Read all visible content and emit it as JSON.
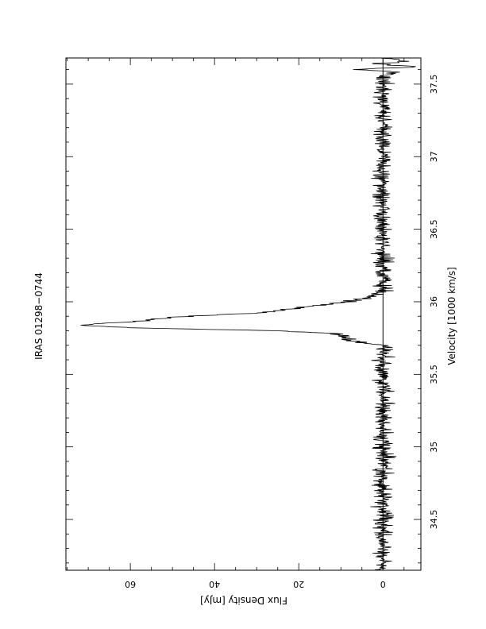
{
  "chart_data": {
    "type": "line",
    "title": "IRAS 01298−0744",
    "xlabel": "Velocity [1000 km/s]",
    "ylabel": "Flux Density [mJy]",
    "xlim": [
      34.15,
      37.68
    ],
    "ylim": [
      -9.0,
      75.3
    ],
    "x_major_ticks": [
      34.5,
      35,
      35.5,
      36,
      36.5,
      37,
      37.5
    ],
    "x_tick_labels": [
      "34.5",
      "35",
      "35.5",
      "36",
      "36.5",
      "37",
      "37.5"
    ],
    "y_major_ticks": [
      0,
      20,
      40,
      60
    ],
    "y_tick_labels": [
      "0",
      "20",
      "40",
      "60"
    ],
    "orientation": "rotated-90-clockwise",
    "grid": false,
    "zero_line": true,
    "series": [
      {
        "line_color": "#000000",
        "noise_rms": 1.1,
        "profile": [
          {
            "x": 34.15,
            "y": 0
          },
          {
            "x": 35.7,
            "y": 0
          },
          {
            "x": 35.72,
            "y": 6
          },
          {
            "x": 35.74,
            "y": 8
          },
          {
            "x": 35.76,
            "y": 9
          },
          {
            "x": 35.78,
            "y": 11
          },
          {
            "x": 35.8,
            "y": 25
          },
          {
            "x": 35.82,
            "y": 60
          },
          {
            "x": 35.84,
            "y": 71
          },
          {
            "x": 35.85,
            "y": 68
          },
          {
            "x": 35.86,
            "y": 60
          },
          {
            "x": 35.88,
            "y": 54
          },
          {
            "x": 35.9,
            "y": 47
          },
          {
            "x": 35.92,
            "y": 32
          },
          {
            "x": 35.94,
            "y": 24
          },
          {
            "x": 35.96,
            "y": 19
          },
          {
            "x": 35.98,
            "y": 14
          },
          {
            "x": 36.0,
            "y": 8
          },
          {
            "x": 36.02,
            "y": 5
          },
          {
            "x": 36.04,
            "y": 3
          },
          {
            "x": 36.06,
            "y": 1
          },
          {
            "x": 36.08,
            "y": 0
          },
          {
            "x": 37.55,
            "y": 0
          },
          {
            "x": 37.58,
            "y": -3
          },
          {
            "x": 37.6,
            "y": 5
          },
          {
            "x": 37.62,
            "y": -8
          },
          {
            "x": 37.64,
            "y": 2
          },
          {
            "x": 37.66,
            "y": -6
          },
          {
            "x": 37.68,
            "y": 0
          }
        ]
      }
    ]
  }
}
